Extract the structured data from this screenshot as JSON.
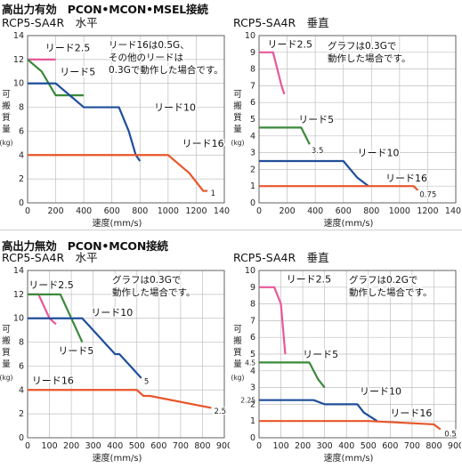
{
  "sections": [
    {
      "title": "高出力有効　PCON•MCON•MSEL接続"
    },
    {
      "title": "高出力無効　PCON•MCON接続"
    }
  ],
  "ylabel_chars": [
    "可",
    "搬",
    "質",
    "量",
    "(kg)"
  ],
  "chart_data": [
    {
      "type": "line",
      "title": "RCP5-SA4R　水平",
      "xlabel": "速度(mm/s)",
      "ylabel": "可搬質量(kg)",
      "xlim": [
        0,
        1400
      ],
      "ylim": [
        0,
        14
      ],
      "xticks": [
        0,
        200,
        400,
        600,
        800,
        1000,
        1200,
        1400
      ],
      "yticks": [
        0,
        2,
        4,
        6,
        8,
        10,
        12,
        14
      ],
      "grid": true,
      "note": [
        "リード16は0.5G、",
        "その他のリードは",
        "0.3Gで動作した場合です。"
      ],
      "series": [
        {
          "name": "リード2.5",
          "color": "#e8579a",
          "x": [
            0,
            200
          ],
          "y": [
            12,
            12
          ],
          "label_anchor": [
            125,
            13
          ]
        },
        {
          "name": "リード5",
          "color": "#3a8a3a",
          "x": [
            0,
            100,
            200,
            400
          ],
          "y": [
            12,
            11,
            9,
            9
          ],
          "label_anchor": [
            230,
            11
          ]
        },
        {
          "name": "リード10",
          "color": "#1f4e9a",
          "x": [
            0,
            200,
            300,
            400,
            550,
            650,
            720,
            770,
            800
          ],
          "y": [
            10,
            10,
            9,
            8,
            8,
            8,
            6,
            4,
            3.5
          ],
          "label_anchor": [
            900,
            8
          ]
        },
        {
          "name": "リード16",
          "color": "#e8552a",
          "x": [
            0,
            1000,
            1150,
            1250,
            1280
          ],
          "y": [
            4,
            4,
            2.5,
            1,
            1
          ],
          "label_anchor": [
            1100,
            5
          ]
        }
      ],
      "end_labels": [
        {
          "text": "1",
          "x": 1290,
          "y": 0.9
        }
      ]
    },
    {
      "type": "line",
      "title": "RCP5-SA4R　垂直",
      "xlabel": "速度(mm/s)",
      "ylabel": "可搬質量(kg)",
      "xlim": [
        0,
        1400
      ],
      "ylim": [
        0,
        10
      ],
      "xticks": [
        0,
        200,
        400,
        600,
        800,
        1000,
        1200,
        1400
      ],
      "yticks": [
        0,
        1,
        2,
        3,
        4,
        5,
        6,
        7,
        8,
        9,
        10
      ],
      "grid": true,
      "note": [
        "グラフは0.3Gで",
        "動作した場合です。"
      ],
      "series": [
        {
          "name": "リード2.5",
          "color": "#e8579a",
          "x": [
            0,
            100,
            160,
            180
          ],
          "y": [
            9,
            9,
            7,
            6.5
          ],
          "label_anchor": [
            60,
            9.5
          ]
        },
        {
          "name": "リード5",
          "color": "#3a8a3a",
          "x": [
            0,
            300,
            330,
            360
          ],
          "y": [
            4.5,
            4.5,
            4,
            3.5
          ],
          "label_anchor": [
            280,
            5
          ]
        },
        {
          "name": "リード10",
          "color": "#1f4e9a",
          "x": [
            0,
            600,
            700,
            780
          ],
          "y": [
            2.5,
            2.5,
            1.5,
            1
          ],
          "label_anchor": [
            700,
            3
          ]
        },
        {
          "name": "リード16",
          "color": "#e8552a",
          "x": [
            0,
            1100,
            1130
          ],
          "y": [
            1,
            1,
            0.75
          ],
          "label_anchor": [
            900,
            1.5
          ]
        }
      ],
      "end_labels": [
        {
          "text": "3.5",
          "x": 360,
          "y": 3.2
        },
        {
          "text": "0.75",
          "x": 1130,
          "y": 0.55
        }
      ]
    },
    {
      "type": "line",
      "title": "RCP5-SA4R　水平",
      "xlabel": "速度(mm/s)",
      "ylabel": "可搬質量(kg)",
      "xlim": [
        0,
        900
      ],
      "ylim": [
        0,
        14
      ],
      "xticks": [
        0,
        100,
        200,
        300,
        400,
        500,
        600,
        700,
        800,
        900
      ],
      "yticks": [
        0,
        2,
        4,
        6,
        8,
        10,
        12,
        14
      ],
      "grid": true,
      "note": [
        "グラフは0.3Gで",
        "動作した場合です。"
      ],
      "series": [
        {
          "name": "リード2.5",
          "color": "#e8579a",
          "x": [
            0,
            50,
            100,
            130
          ],
          "y": [
            12,
            12,
            10,
            9.5
          ],
          "label_anchor": [
            5,
            12.8
          ]
        },
        {
          "name": "リード5",
          "color": "#3a8a3a",
          "x": [
            0,
            150,
            200,
            250
          ],
          "y": [
            12,
            12,
            10,
            8
          ],
          "label_anchor": [
            140,
            7.3
          ]
        },
        {
          "name": "リード10",
          "color": "#1f4e9a",
          "x": [
            0,
            250,
            300,
            350,
            400,
            420,
            470,
            520
          ],
          "y": [
            10,
            10,
            9,
            8,
            7,
            7,
            6,
            5
          ],
          "label_anchor": [
            290,
            10.5
          ]
        },
        {
          "name": "リード16",
          "color": "#e8552a",
          "x": [
            0,
            500,
            530,
            560,
            840
          ],
          "y": [
            4,
            4,
            3.5,
            3.5,
            2.5
          ],
          "label_anchor": [
            20,
            4.8
          ]
        }
      ],
      "end_labels": [
        {
          "text": "5",
          "x": 525,
          "y": 4.8
        },
        {
          "text": "2.5",
          "x": 845,
          "y": 2.3
        }
      ]
    },
    {
      "type": "line",
      "title": "RCP5-SA4R　垂直",
      "xlabel": "速度(mm/s)",
      "ylabel": "可搬質量(kg)",
      "xlim": [
        0,
        900
      ],
      "ylim": [
        0,
        10
      ],
      "xticks": [
        0,
        100,
        200,
        300,
        400,
        500,
        600,
        700,
        800,
        900
      ],
      "yticks": [
        0,
        1,
        2,
        2.25,
        3,
        4,
        4.5,
        5,
        6,
        7,
        8,
        9,
        10
      ],
      "grid": true,
      "note": [
        "グラフは0.2Gで",
        "動作した場合です。"
      ],
      "series": [
        {
          "name": "リード2.5",
          "color": "#e8579a",
          "x": [
            0,
            70,
            100,
            120
          ],
          "y": [
            9,
            9,
            8,
            5
          ],
          "label_anchor": [
            125,
            9.5
          ]
        },
        {
          "name": "リード5",
          "color": "#3a8a3a",
          "x": [
            0,
            230,
            270,
            300
          ],
          "y": [
            4.5,
            4.5,
            3.5,
            3
          ],
          "label_anchor": [
            200,
            5
          ]
        },
        {
          "name": "リード10",
          "color": "#1f4e9a",
          "x": [
            0,
            250,
            300,
            400,
            450,
            480,
            540
          ],
          "y": [
            2.25,
            2.25,
            2,
            2,
            2,
            1.5,
            1
          ],
          "label_anchor": [
            460,
            2.8
          ]
        },
        {
          "name": "リード16",
          "color": "#e8552a",
          "x": [
            0,
            500,
            800,
            830
          ],
          "y": [
            1,
            1,
            0.8,
            0.5
          ],
          "label_anchor": [
            600,
            1.5
          ]
        }
      ],
      "end_labels": [
        {
          "text": "0.5",
          "x": 840,
          "y": 0.3
        }
      ]
    }
  ]
}
